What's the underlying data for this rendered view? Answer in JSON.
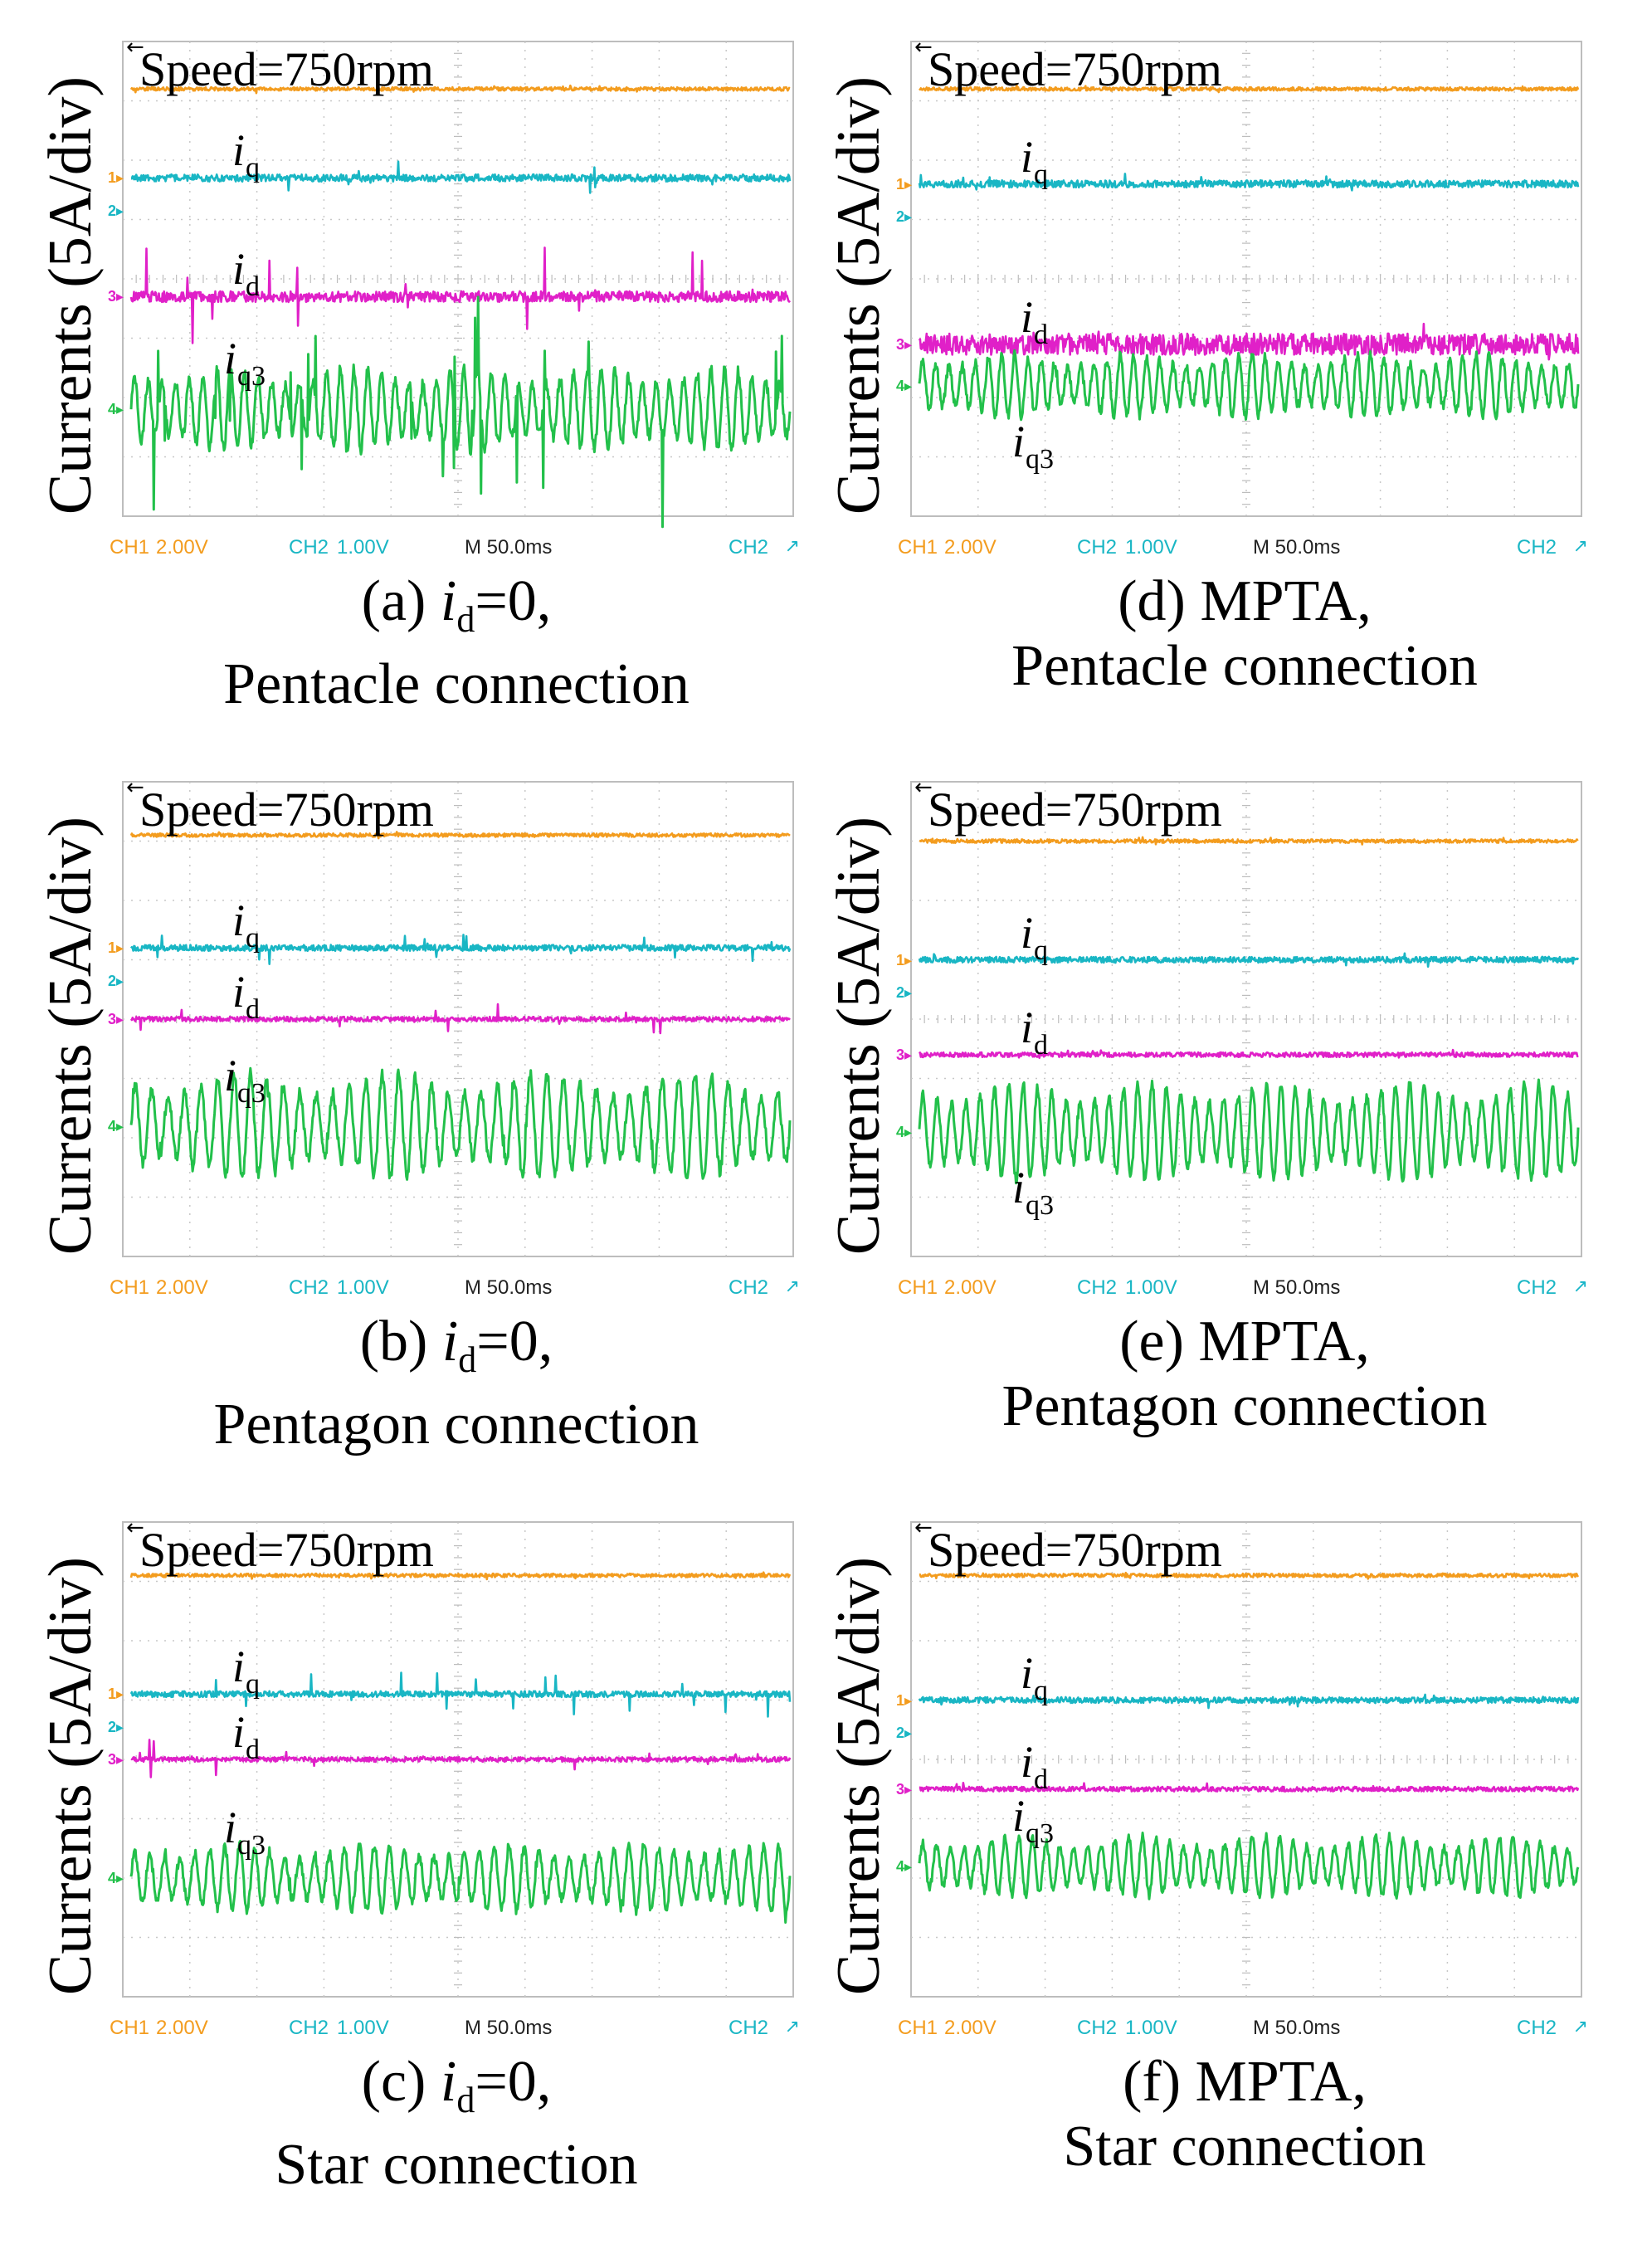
{
  "figure": {
    "y_axis_label": "Currents (5A/div)",
    "panels": [
      {
        "id": "a",
        "caption_prefix": "(a) ",
        "caption_italic": "i",
        "caption_sub": "d",
        "caption_suffix": "=0,",
        "caption_line2": "Pentacle connection",
        "speed_text": "Speed=750rpm",
        "footer": {
          "ch1": "CH1",
          "ch1_scale": "2.00V",
          "ch2": "CH2",
          "ch2_scale": "1.00V",
          "timebase": "M 50.0ms",
          "trigger_channel": "CH2"
        },
        "channel_markers": [
          "1",
          "2",
          "3",
          "4"
        ],
        "chart_data": {
          "type": "line",
          "title": "(a) id=0, Pentacle connection",
          "ylabel": "Currents (5A/div)",
          "xlabel": "M 50.0ms",
          "grid": true,
          "series": [
            {
              "name": "Speed",
              "color": "#f39c1e",
              "level_div": 3.2,
              "ripple_div": 0.03,
              "spike_div": 0.05,
              "oscillation": false
            },
            {
              "name": "iq",
              "color": "#19b6c4",
              "level_div": 1.7,
              "ripple_div": 0.06,
              "spike_div": 0.25,
              "oscillation": false
            },
            {
              "name": "id",
              "color": "#e020c8",
              "level_div": -0.3,
              "ripple_div": 0.09,
              "spike_div": 0.8,
              "oscillation": false
            },
            {
              "name": "iq3",
              "color": "#22c04a",
              "level_div": -2.2,
              "ripple_div": 0.1,
              "spike_div": 1.6,
              "oscillation": true,
              "amplitude_div": 0.55,
              "cycles": 48
            }
          ],
          "trace_labels": [
            {
              "base": "i",
              "sub": "q"
            },
            {
              "base": "i",
              "sub": "d"
            },
            {
              "base": "i",
              "sub": "q3"
            }
          ]
        }
      },
      {
        "id": "b",
        "caption_prefix": "(b) ",
        "caption_italic": "i",
        "caption_sub": "d",
        "caption_suffix": "=0,",
        "caption_line2": "Pentagon connection",
        "speed_text": "Speed=750rpm",
        "footer": {
          "ch1": "CH1",
          "ch1_scale": "2.00V",
          "ch2": "CH2",
          "ch2_scale": "1.00V",
          "timebase": "M 50.0ms",
          "trigger_channel": "CH2"
        },
        "channel_markers": [
          "1",
          "2",
          "3",
          "4"
        ],
        "chart_data": {
          "type": "line",
          "title": "(b) id=0, Pentagon connection",
          "ylabel": "Currents (5A/div)",
          "xlabel": "M 50.0ms",
          "grid": true,
          "series": [
            {
              "name": "Speed",
              "color": "#f39c1e",
              "level_div": 3.1,
              "ripple_div": 0.03,
              "spike_div": 0.05,
              "oscillation": false
            },
            {
              "name": "iq",
              "color": "#19b6c4",
              "level_div": 1.2,
              "ripple_div": 0.05,
              "spike_div": 0.25,
              "oscillation": false
            },
            {
              "name": "id",
              "color": "#e020c8",
              "level_div": 0.0,
              "ripple_div": 0.04,
              "spike_div": 0.3,
              "oscillation": false
            },
            {
              "name": "iq3",
              "color": "#22c04a",
              "level_div": -1.8,
              "ripple_div": 0.1,
              "spike_div": 0.4,
              "oscillation": true,
              "amplitude_div": 0.7,
              "cycles": 40
            }
          ],
          "trace_labels": [
            {
              "base": "i",
              "sub": "q"
            },
            {
              "base": "i",
              "sub": "d"
            },
            {
              "base": "i",
              "sub": "q3"
            }
          ]
        }
      },
      {
        "id": "c",
        "caption_prefix": "(c) ",
        "caption_italic": "i",
        "caption_sub": "d",
        "caption_suffix": "=0,",
        "caption_line2": "Star connection",
        "speed_text": "Speed=750rpm",
        "footer": {
          "ch1": "CH1",
          "ch1_scale": "2.00V",
          "ch2": "CH2",
          "ch2_scale": "1.00V",
          "timebase": "M 50.0ms",
          "trigger_channel": "CH2"
        },
        "channel_markers": [
          "1",
          "2",
          "3",
          "4"
        ],
        "chart_data": {
          "type": "line",
          "title": "(c) id=0, Star connection",
          "ylabel": "Currents (5A/div)",
          "xlabel": "M 50.0ms",
          "grid": true,
          "series": [
            {
              "name": "Speed",
              "color": "#f39c1e",
              "level_div": 3.1,
              "ripple_div": 0.03,
              "spike_div": 0.05,
              "oscillation": false
            },
            {
              "name": "iq",
              "color": "#19b6c4",
              "level_div": 1.1,
              "ripple_div": 0.05,
              "spike_div": 0.4,
              "oscillation": false
            },
            {
              "name": "id",
              "color": "#e020c8",
              "level_div": 0.0,
              "ripple_div": 0.04,
              "spike_div": 0.3,
              "oscillation": false
            },
            {
              "name": "iq3",
              "color": "#22c04a",
              "level_div": -2.0,
              "ripple_div": 0.08,
              "spike_div": 0.2,
              "oscillation": true,
              "amplitude_div": 0.45,
              "cycles": 44
            }
          ],
          "trace_labels": [
            {
              "base": "i",
              "sub": "q"
            },
            {
              "base": "i",
              "sub": "d"
            },
            {
              "base": "i",
              "sub": "q3"
            }
          ]
        }
      },
      {
        "id": "d",
        "caption_prefix": "(d) MPTA,",
        "caption_italic": "",
        "caption_sub": "",
        "caption_suffix": "",
        "caption_line2": "Pentacle connection",
        "speed_text": "Speed=750rpm",
        "footer": {
          "ch1": "CH1",
          "ch1_scale": "2.00V",
          "ch2": "CH2",
          "ch2_scale": "1.00V",
          "timebase": "M 50.0ms",
          "trigger_channel": "CH2"
        },
        "channel_markers": [
          "1",
          "2",
          "3",
          "4"
        ],
        "chart_data": {
          "type": "line",
          "title": "(d) MPTA, Pentacle connection",
          "ylabel": "Currents (5A/div)",
          "xlabel": "M 50.0ms",
          "grid": true,
          "series": [
            {
              "name": "Speed",
              "color": "#f39c1e",
              "level_div": 3.2,
              "ripple_div": 0.03,
              "spike_div": 0.05,
              "oscillation": false
            },
            {
              "name": "iq",
              "color": "#19b6c4",
              "level_div": 1.6,
              "ripple_div": 0.06,
              "spike_div": 0.15,
              "oscillation": false
            },
            {
              "name": "id",
              "color": "#e020c8",
              "level_div": -1.1,
              "ripple_div": 0.18,
              "spike_div": 0.3,
              "oscillation": false
            },
            {
              "name": "iq3",
              "color": "#22c04a",
              "level_div": -1.8,
              "ripple_div": 0.08,
              "spike_div": 0.1,
              "oscillation": true,
              "amplitude_div": 0.42,
              "cycles": 50
            }
          ],
          "trace_labels": [
            {
              "base": "i",
              "sub": "q"
            },
            {
              "base": "i",
              "sub": "d"
            },
            {
              "base": "i",
              "sub": "q3"
            }
          ]
        }
      },
      {
        "id": "e",
        "caption_prefix": "(e) MPTA,",
        "caption_italic": "",
        "caption_sub": "",
        "caption_suffix": "",
        "caption_line2": "Pentagon connection",
        "speed_text": "Speed=750rpm",
        "footer": {
          "ch1": "CH1",
          "ch1_scale": "2.00V",
          "ch2": "CH2",
          "ch2_scale": "1.00V",
          "timebase": "M 50.0ms",
          "trigger_channel": "CH2"
        },
        "channel_markers": [
          "1",
          "2",
          "3",
          "4"
        ],
        "chart_data": {
          "type": "line",
          "title": "(e) MPTA, Pentagon connection",
          "ylabel": "Currents (5A/div)",
          "xlabel": "M 50.0ms",
          "grid": true,
          "series": [
            {
              "name": "Speed",
              "color": "#f39c1e",
              "level_div": 3.0,
              "ripple_div": 0.03,
              "spike_div": 0.05,
              "oscillation": false
            },
            {
              "name": "iq",
              "color": "#19b6c4",
              "level_div": 1.0,
              "ripple_div": 0.05,
              "spike_div": 0.1,
              "oscillation": false
            },
            {
              "name": "id",
              "color": "#e020c8",
              "level_div": -0.6,
              "ripple_div": 0.04,
              "spike_div": 0.1,
              "oscillation": false
            },
            {
              "name": "iq3",
              "color": "#22c04a",
              "level_div": -1.9,
              "ripple_div": 0.08,
              "spike_div": 0.1,
              "oscillation": true,
              "amplitude_div": 0.65,
              "cycles": 46
            }
          ],
          "trace_labels": [
            {
              "base": "i",
              "sub": "q"
            },
            {
              "base": "i",
              "sub": "d"
            },
            {
              "base": "i",
              "sub": "q3"
            }
          ]
        }
      },
      {
        "id": "f",
        "caption_prefix": "(f) MPTA,",
        "caption_italic": "",
        "caption_sub": "",
        "caption_suffix": "",
        "caption_line2": "Star connection",
        "speed_text": "Speed=750rpm",
        "footer": {
          "ch1": "CH1",
          "ch1_scale": "2.00V",
          "ch2": "CH2",
          "ch2_scale": "1.00V",
          "timebase": "M 50.0ms",
          "trigger_channel": "CH2"
        },
        "channel_markers": [
          "1",
          "2",
          "3",
          "4"
        ],
        "chart_data": {
          "type": "line",
          "title": "(f) MPTA, Star connection",
          "ylabel": "Currents (5A/div)",
          "xlabel": "M 50.0ms",
          "grid": true,
          "series": [
            {
              "name": "Speed",
              "color": "#f39c1e",
              "level_div": 3.1,
              "ripple_div": 0.03,
              "spike_div": 0.05,
              "oscillation": false
            },
            {
              "name": "iq",
              "color": "#19b6c4",
              "level_div": 1.0,
              "ripple_div": 0.05,
              "spike_div": 0.1,
              "oscillation": false
            },
            {
              "name": "id",
              "color": "#e020c8",
              "level_div": -0.5,
              "ripple_div": 0.04,
              "spike_div": 0.1,
              "oscillation": false
            },
            {
              "name": "iq3",
              "color": "#22c04a",
              "level_div": -1.8,
              "ripple_div": 0.07,
              "spike_div": 0.1,
              "oscillation": true,
              "amplitude_div": 0.4,
              "cycles": 48
            }
          ],
          "trace_labels": [
            {
              "base": "i",
              "sub": "q"
            },
            {
              "base": "i",
              "sub": "d"
            },
            {
              "base": "i",
              "sub": "q3"
            }
          ]
        }
      }
    ]
  }
}
